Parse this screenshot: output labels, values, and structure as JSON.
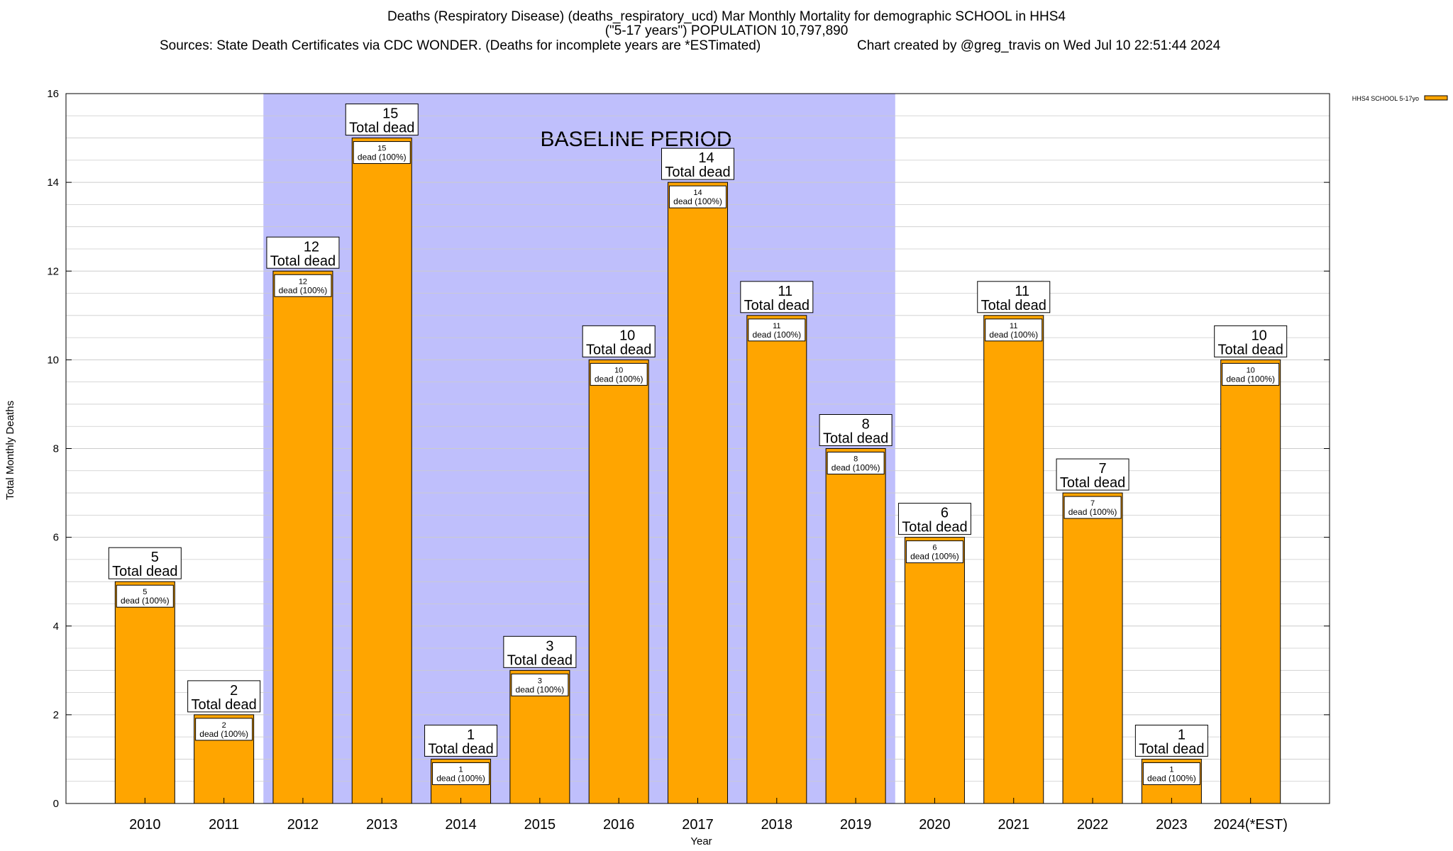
{
  "title": {
    "line1": "Deaths (Respiratory Disease) (deaths_respiratory_ucd) Mar Monthly Mortality for demographic SCHOOL in HHS4",
    "line2": "(\"5-17 years\") POPULATION 10,797,890",
    "sources": "Sources: State Death Certificates via CDC WONDER. (Deaths for incomplete years are *ESTimated)",
    "credit": "Chart created by @greg_travis on Wed Jul 10 22:51:44 2024"
  },
  "chart_data": {
    "type": "bar",
    "categories": [
      "2010",
      "2011",
      "2012",
      "2013",
      "2014",
      "2015",
      "2016",
      "2017",
      "2018",
      "2019",
      "2020",
      "2021",
      "2022",
      "2023",
      "2024(*EST)"
    ],
    "series": [
      {
        "name": "HHS4 SCHOOL 5-17yo",
        "values": [
          5,
          2,
          12,
          15,
          1,
          3,
          10,
          14,
          11,
          8,
          6,
          11,
          7,
          1,
          10
        ]
      }
    ],
    "xlabel": "Year",
    "ylabel": "Total Monthly Deaths",
    "ylim": [
      0,
      16
    ],
    "yticks": [
      0,
      2,
      4,
      6,
      8,
      10,
      12,
      14,
      16
    ],
    "grid": true,
    "legend_position": "top-right",
    "baseline_label": "BASELINE PERIOD",
    "baseline_range": [
      "2012",
      "2019"
    ],
    "total_label": "Total dead",
    "inner_label": "dead (100%)",
    "colors": {
      "bar": "#ffa500",
      "baseline": "#bfbffc",
      "grid": "#cccccc"
    }
  }
}
